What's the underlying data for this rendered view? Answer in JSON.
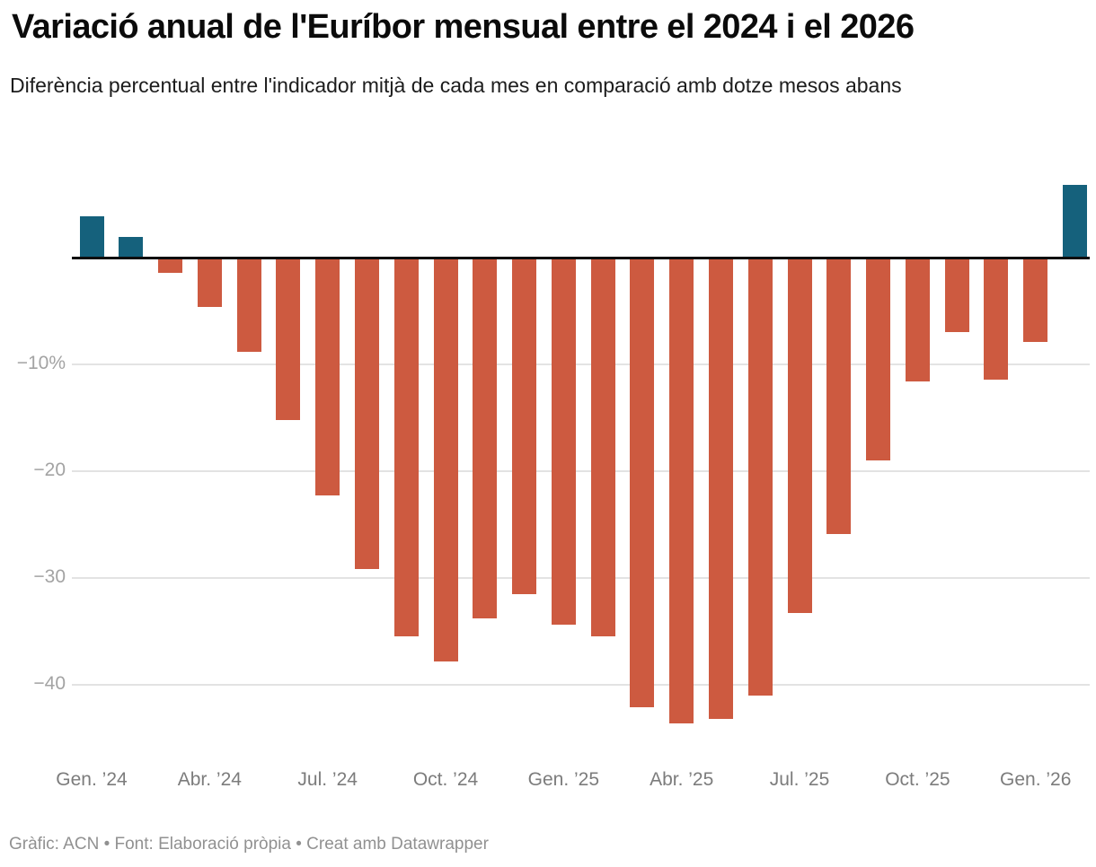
{
  "header": {
    "title": "Variació anual de l'Euríbor mensual entre el 2024 i el 2026",
    "subtitle": "Diferència percentual entre l'indicador mitjà de cada mes en comparació amb dotze mesos abans"
  },
  "footer": {
    "text": "Gràfic: ACN • Font: Elaboració pròpia • Creat amb Datawrapper"
  },
  "chart_data": {
    "type": "bar",
    "unit": "%",
    "categories": [
      "2024-01",
      "2024-02",
      "2024-03",
      "2024-04",
      "2024-05",
      "2024-06",
      "2024-07",
      "2024-08",
      "2024-09",
      "2024-10",
      "2024-11",
      "2024-12",
      "2025-01",
      "2025-02",
      "2025-03",
      "2025-04",
      "2025-05",
      "2025-06",
      "2025-07",
      "2025-08",
      "2025-09",
      "2025-10",
      "2025-11",
      "2025-12",
      "2026-01",
      "2026-02"
    ],
    "values": [
      3.9,
      1.9,
      -1.4,
      -4.6,
      -8.8,
      -15.2,
      -22.3,
      -29.2,
      -35.5,
      -37.8,
      -33.8,
      -31.5,
      -34.4,
      -35.5,
      -42.1,
      -43.6,
      -43.2,
      -41.0,
      -33.3,
      -25.9,
      -19.0,
      -11.6,
      -7.0,
      -11.4,
      -7.9,
      6.8
    ],
    "x_tick_labels": [
      "Gen. ’24",
      "Abr. ’24",
      "Jul. ’24",
      "Oct. ’24",
      "Gen. ’25",
      "Abr. ’25",
      "Jul. ’25",
      "Oct. ’25",
      "Gen. ’26"
    ],
    "x_tick_every": 3,
    "y_ticks": [
      {
        "value": -10,
        "label": "−10%"
      },
      {
        "value": -20,
        "label": "−20"
      },
      {
        "value": -30,
        "label": "−30"
      },
      {
        "value": -40,
        "label": "−40"
      }
    ],
    "ylim": [
      -46,
      8
    ],
    "grid": "horizontal",
    "zero_line": true,
    "legend": "none",
    "colors": {
      "positive": "#15617c",
      "negative": "#cd5a40"
    }
  }
}
